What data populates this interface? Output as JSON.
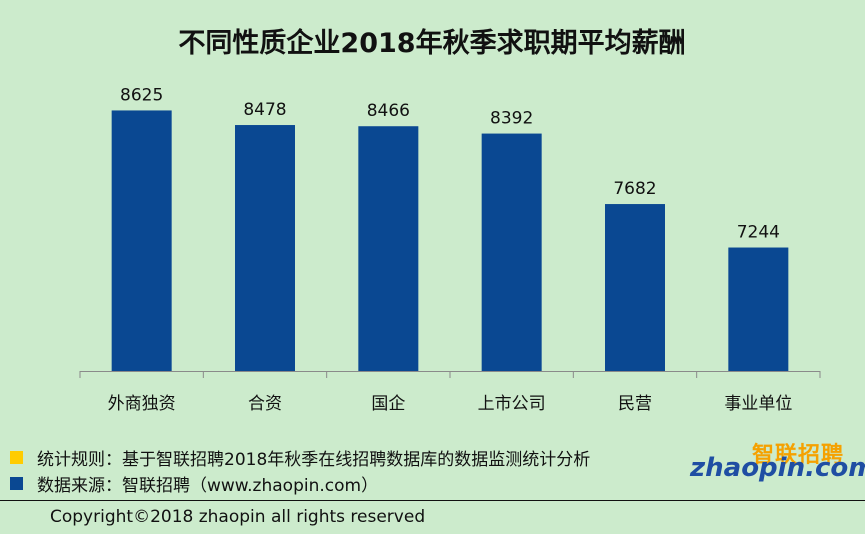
{
  "chart_data": {
    "type": "bar",
    "title": "不同性质企业2018年秋季求职期平均薪酬",
    "categories": [
      "外商独资",
      "合资",
      "国企",
      "上市公司",
      "民营",
      "事业单位"
    ],
    "values": [
      8625,
      8478,
      8466,
      8392,
      7682,
      7244
    ],
    "value_labels": [
      "8625",
      "8478",
      "8466",
      "8392",
      "7682",
      "7244"
    ],
    "ylim": [
      6000,
      8700
    ],
    "bar_color": "#0a4892",
    "grid": false
  },
  "legend": {
    "items": [
      {
        "label": "统计规则：基于智联招聘2018年秋季在线招聘数据库的数据监测统计分析",
        "color": "#ffcc00"
      },
      {
        "label": "数据来源：智联招聘（www.zhaopin.com）",
        "color": "#0a4892"
      }
    ]
  },
  "logo": {
    "cn": "智联招聘",
    "en": "zhaopin.com"
  },
  "footer": {
    "copyright": "Copyright©2018 zhaopin all rights reserved"
  }
}
